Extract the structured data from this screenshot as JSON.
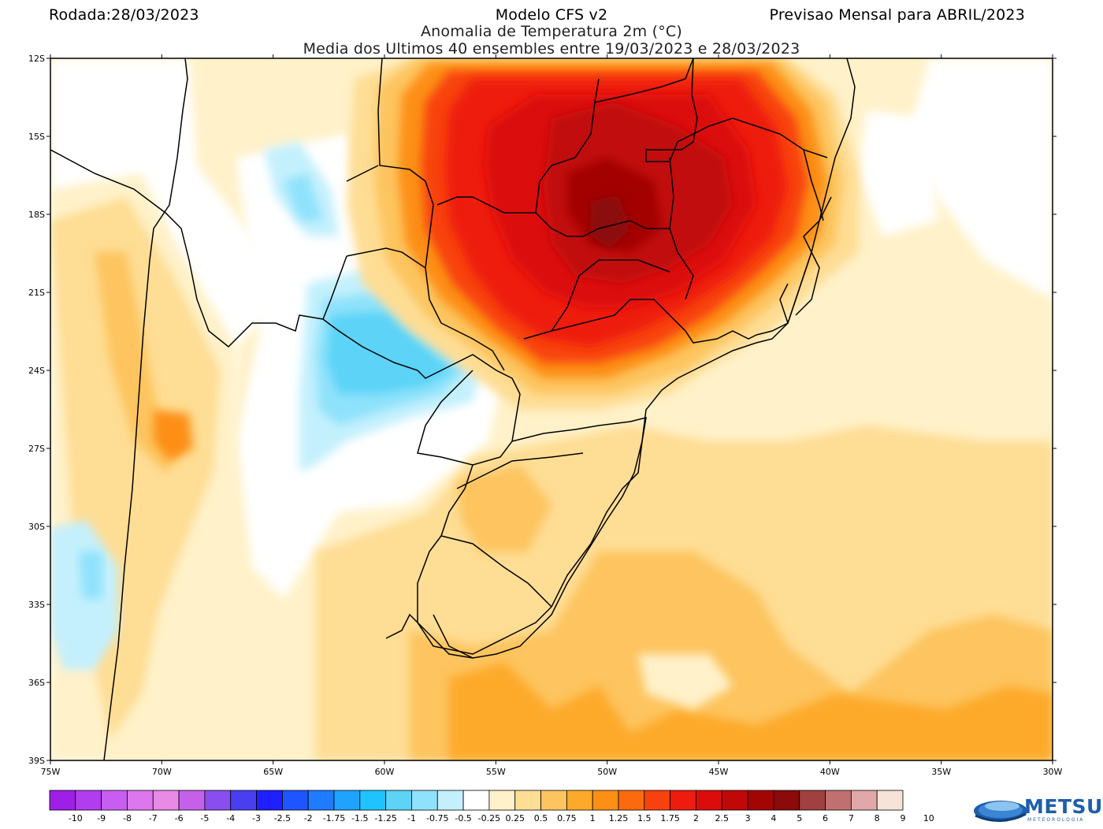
{
  "header": {
    "run_label": "Rodada:28/03/2023",
    "model": "Modelo CFS v2",
    "forecast": "Previsao Mensal para ABRIL/2023",
    "subtitle": "Anomalia de Temperatura 2m (°C)",
    "subtitle2": "Media dos Ultimos 40 ensembles entre 19/03/2023 e 28/03/2023"
  },
  "map": {
    "lat_ticks": [
      "12S",
      "15S",
      "18S",
      "21S",
      "24S",
      "27S",
      "30S",
      "33S",
      "36S",
      "39S"
    ],
    "lon_ticks": [
      "75W",
      "70W",
      "65W",
      "60W",
      "55W",
      "50W",
      "45W",
      "40W",
      "35W",
      "30W"
    ]
  },
  "legend": {
    "colors": [
      "#9e1fe6",
      "#b23df0",
      "#c85ef0",
      "#dc77ee",
      "#e88ae6",
      "#c560e8",
      "#8a4ef0",
      "#4a3ff0",
      "#1f1fff",
      "#1f55ff",
      "#1f7bff",
      "#1fa3ff",
      "#1fc4ff",
      "#5cd3f7",
      "#8fe2fb",
      "#c4f0fd",
      "#ffffff",
      "#fff1c9",
      "#fedd94",
      "#fdc45f",
      "#fdaa2a",
      "#fd8f14",
      "#fc6a0f",
      "#f8420e",
      "#ee1b0f",
      "#dc0c0c",
      "#c10808",
      "#a30505",
      "#8b0a0a",
      "#a04040",
      "#c07070",
      "#e0a8a8",
      "#f7e3d8"
    ],
    "labels": [
      "-10",
      "-9",
      "-8",
      "-7",
      "-6",
      "-5",
      "-4",
      "-3",
      "-2.5",
      "-2",
      "-1.75",
      "-1.5",
      "-1.25",
      "-1",
      "-0.75",
      "-0.5",
      "-0.25",
      "0.25",
      "0.5",
      "0.75",
      "1",
      "1.25",
      "1.5",
      "1.75",
      "2",
      "2.5",
      "3",
      "4",
      "5",
      "6",
      "7",
      "8",
      "9",
      "10"
    ]
  },
  "brand": {
    "name": "METSUL",
    "sub": "METEOROLOGIA",
    "color": "#1f5fa8"
  }
}
